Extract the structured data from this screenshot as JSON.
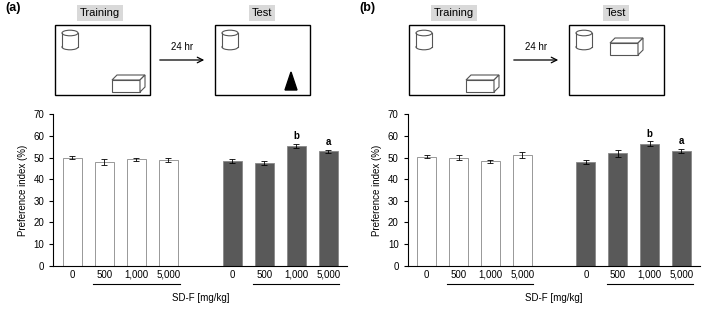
{
  "chart_data": [
    {
      "type": "bar",
      "panel": "(a)",
      "diagram": {
        "training": "Training",
        "test": "Test",
        "interval": "24 hr"
      },
      "y_label": "Preference index (%)",
      "x_label": "SD-F [mg/kg]",
      "categories": [
        "0",
        "500",
        "1,000",
        "5,000",
        null,
        "0",
        "500",
        "1,000",
        "5,000"
      ],
      "values": [
        50.0,
        48.0,
        49.2,
        48.8,
        null,
        48.5,
        47.5,
        55.5,
        53.0
      ],
      "errors": [
        0.8,
        1.2,
        0.7,
        0.8,
        null,
        1.0,
        0.8,
        1.0,
        0.7
      ],
      "colors": [
        "#ffffff",
        "#ffffff",
        "#ffffff",
        "#ffffff",
        null,
        "#595959",
        "#595959",
        "#595959",
        "#595959"
      ],
      "annotations": [
        {
          "index": 7,
          "text": "b"
        },
        {
          "index": 8,
          "text": "a"
        }
      ],
      "ylim": [
        0,
        70
      ],
      "yticks": [
        0,
        10,
        20,
        30,
        40,
        50,
        60,
        70
      ]
    },
    {
      "type": "bar",
      "panel": "(b)",
      "diagram": {
        "training": "Training",
        "test": "Test",
        "interval": "24 hr"
      },
      "y_label": "Preference index (%)",
      "x_label": "SD-F [mg/kg]",
      "categories": [
        "0",
        "500",
        "1,000",
        "5,000",
        null,
        "0",
        "500",
        "1,000",
        "5,000"
      ],
      "values": [
        50.5,
        50.0,
        48.3,
        51.2,
        null,
        48.0,
        52.0,
        56.5,
        53.2
      ],
      "errors": [
        0.8,
        1.2,
        0.7,
        1.2,
        null,
        0.8,
        1.5,
        1.0,
        1.0
      ],
      "colors": [
        "#ffffff",
        "#ffffff",
        "#ffffff",
        "#ffffff",
        null,
        "#595959",
        "#595959",
        "#595959",
        "#595959"
      ],
      "annotations": [
        {
          "index": 7,
          "text": "b"
        },
        {
          "index": 8,
          "text": "a"
        }
      ],
      "ylim": [
        0,
        70
      ],
      "yticks": [
        0,
        10,
        20,
        30,
        40,
        50,
        60,
        70
      ]
    }
  ]
}
